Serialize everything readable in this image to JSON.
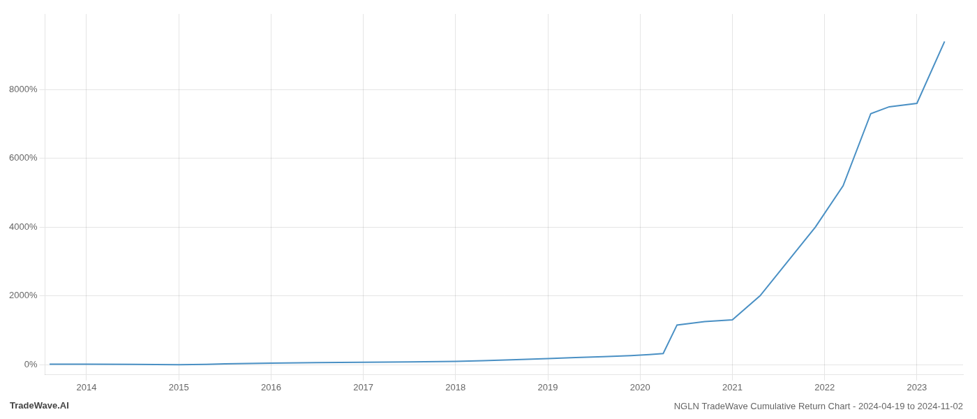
{
  "chart_data": {
    "type": "line",
    "title": "NGLN TradeWave Cumulative Return Chart - 2024-04-19 to 2024-11-02",
    "annotations": [
      "TradeWave.AI"
    ],
    "x": [
      2013.6,
      2014.0,
      2014.5,
      2015.0,
      2015.3,
      2015.5,
      2016.0,
      2016.5,
      2017.0,
      2017.5,
      2018.0,
      2018.3,
      2018.6,
      2019.0,
      2019.3,
      2019.6,
      2019.9,
      2020.1,
      2020.25,
      2020.4,
      2020.55,
      2020.7,
      2021.0,
      2021.3,
      2021.6,
      2021.9,
      2022.2,
      2022.5,
      2022.7,
      2023.0,
      2023.3
    ],
    "values": [
      10,
      10,
      5,
      -5,
      5,
      20,
      40,
      55,
      65,
      75,
      90,
      110,
      140,
      175,
      205,
      230,
      260,
      290,
      320,
      1150,
      1200,
      1250,
      1300,
      2000,
      3000,
      4000,
      5200,
      7300,
      7500,
      7600,
      9400
    ],
    "color": "#4a90c4",
    "xlim": [
      2013.55,
      2023.5
    ],
    "xticks": [
      2014,
      2015,
      2016,
      2017,
      2018,
      2019,
      2020,
      2021,
      2022,
      2023
    ],
    "ylim": [
      -300,
      10200
    ],
    "yticks": [
      {
        "value": 0,
        "label": "0%"
      },
      {
        "value": 2000,
        "label": "2000%"
      },
      {
        "value": 4000,
        "label": "4000%"
      },
      {
        "value": 6000,
        "label": "6000%"
      },
      {
        "value": 8000,
        "label": "8000%"
      }
    ],
    "grid": true
  }
}
